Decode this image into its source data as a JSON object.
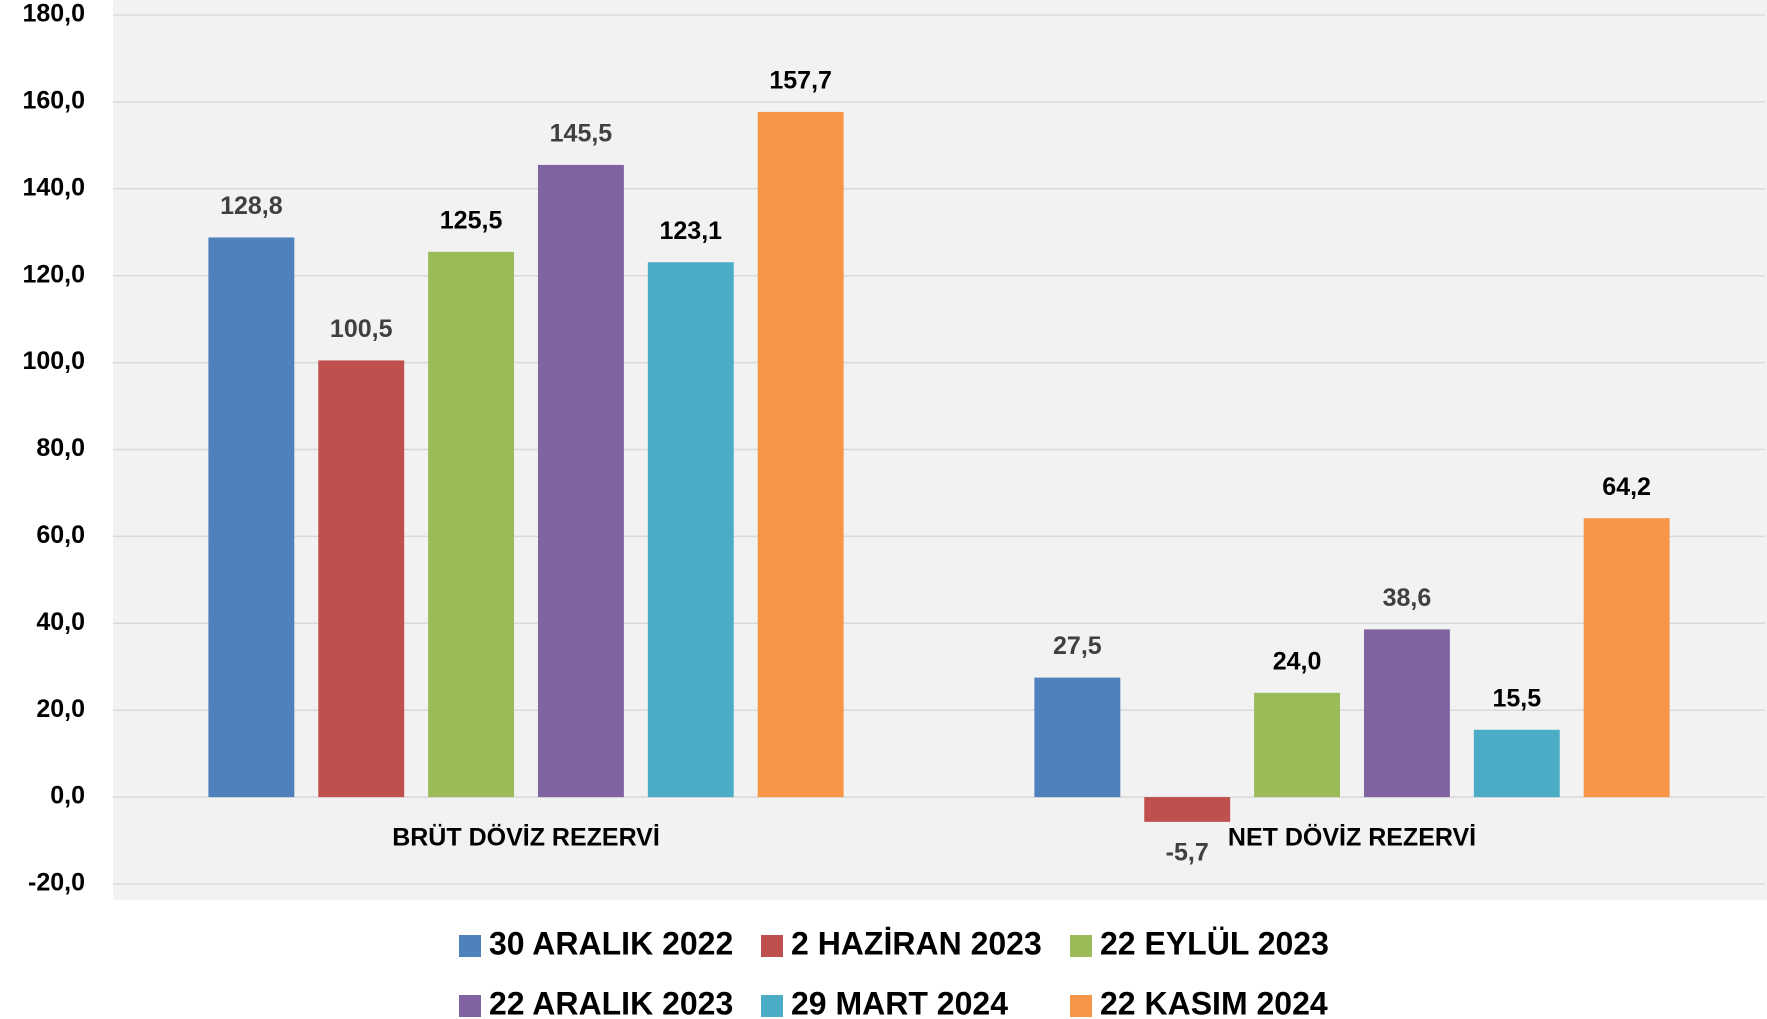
{
  "chart_data": {
    "type": "bar",
    "categories": [
      "BRÜT DÖVİZ REZERVİ",
      "NET DÖVİZ REZERVİ"
    ],
    "series": [
      {
        "name": "30 ARALIK 2022",
        "color": "#4f81bd",
        "label_color": "#404040",
        "values": [
          128.8,
          27.5
        ],
        "value_labels": [
          "128,8",
          "27,5"
        ]
      },
      {
        "name": "2 HAZİRAN 2023",
        "color": "#c0504d",
        "label_color": "#404040",
        "values": [
          100.5,
          -5.7
        ],
        "value_labels": [
          "100,5",
          "-5,7"
        ]
      },
      {
        "name": "22 EYLÜL 2023",
        "color": "#9bbb59",
        "label_color": "#000000",
        "values": [
          125.5,
          24.0
        ],
        "value_labels": [
          "125,5",
          "24,0"
        ]
      },
      {
        "name": "22 ARALIK 2023",
        "color": "#8064a2",
        "label_color": "#404040",
        "values": [
          145.5,
          38.6
        ],
        "value_labels": [
          "145,5",
          "38,6"
        ]
      },
      {
        "name": "29 MART 2024",
        "color": "#4bacc6",
        "label_color": "#000000",
        "values": [
          123.1,
          15.5
        ],
        "value_labels": [
          "123,1",
          "15,5"
        ]
      },
      {
        "name": "22 KASIM 2024",
        "color": "#f79646",
        "label_color": "#000000",
        "values": [
          157.7,
          64.2
        ],
        "value_labels": [
          "157,7",
          "64,2"
        ]
      }
    ],
    "ylim": [
      -20,
      180
    ],
    "yticks": [
      {
        "value": -20,
        "label": "-20,0"
      },
      {
        "value": 0,
        "label": "0,0"
      },
      {
        "value": 20,
        "label": "20,0"
      },
      {
        "value": 40,
        "label": "40,0"
      },
      {
        "value": 60,
        "label": "60,0"
      },
      {
        "value": 80,
        "label": "80,0"
      },
      {
        "value": 100,
        "label": "100,0"
      },
      {
        "value": 120,
        "label": "120,0"
      },
      {
        "value": 140,
        "label": "140,0"
      },
      {
        "value": 160,
        "label": "160,0"
      },
      {
        "value": 180,
        "label": "180,0"
      }
    ],
    "grid": true,
    "legend": "bottom"
  }
}
